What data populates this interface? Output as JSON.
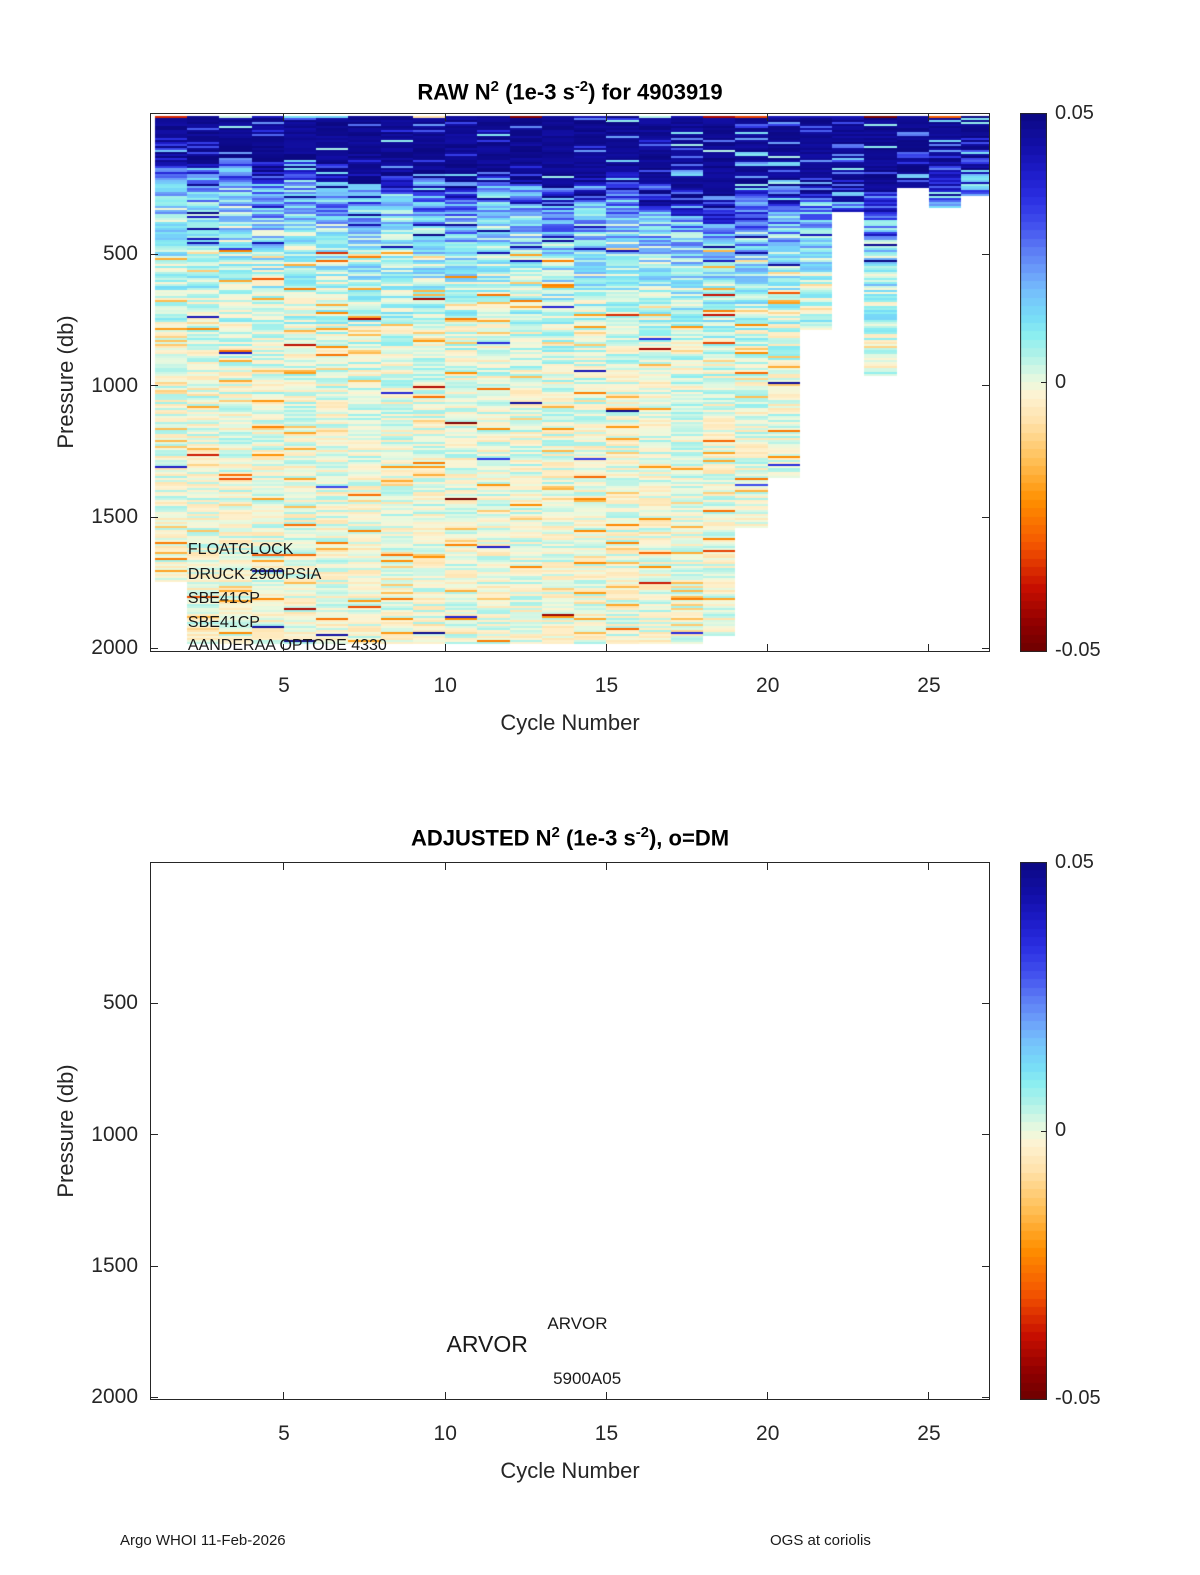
{
  "page": {
    "footer_left": "Argo WHOI 11-Feb-2026",
    "footer_right": "OGS at coriolis"
  },
  "colormap": {
    "vmin": -0.05,
    "vmax": 0.05,
    "levels": 64,
    "stops": [
      [
        0.0,
        "#6e0000"
      ],
      [
        0.05,
        "#8f0000"
      ],
      [
        0.12,
        "#c80f00"
      ],
      [
        0.2,
        "#f55700"
      ],
      [
        0.28,
        "#ff9000"
      ],
      [
        0.36,
        "#ffc35e"
      ],
      [
        0.43,
        "#ffe3ae"
      ],
      [
        0.475,
        "#fdf3d2"
      ],
      [
        0.5,
        "#ecf9dd"
      ],
      [
        0.52,
        "#d4f7e4"
      ],
      [
        0.55,
        "#b0f2e8"
      ],
      [
        0.585,
        "#8deef0"
      ],
      [
        0.62,
        "#77ddf7"
      ],
      [
        0.66,
        "#76c4fb"
      ],
      [
        0.7,
        "#6da3fa"
      ],
      [
        0.745,
        "#5c7bf5"
      ],
      [
        0.79,
        "#4251ee"
      ],
      [
        0.84,
        "#2b2fe2"
      ],
      [
        0.89,
        "#1d1bc8"
      ],
      [
        0.94,
        "#120fa6"
      ],
      [
        1.0,
        "#0b0882"
      ]
    ]
  },
  "chart_data": [
    {
      "type": "heatmap",
      "panel": "raw",
      "title_parts": [
        {
          "text": "RAW N"
        },
        {
          "sup": "2"
        },
        {
          "text": " (1e-3 s"
        },
        {
          "sup": "-2"
        },
        {
          "text": ") for 4903919"
        }
      ],
      "xlabel": "Cycle Number",
      "ylabel": "Pressure (db)",
      "xticks": [
        5,
        10,
        15,
        20,
        25
      ],
      "yticks": [
        500,
        1000,
        1500,
        2000
      ],
      "xlim": [
        0.845,
        26.9
      ],
      "ylim_db": [
        -40,
        2020
      ],
      "cycles": 26,
      "value_units": "1e-3 s^-2",
      "colorbar_ticks": [
        "0.05",
        "0",
        "-0.05"
      ],
      "column_bottom_db": [
        1780,
        2015,
        2015,
        2015,
        2015,
        2015,
        2015,
        2015,
        2015,
        2015,
        2015,
        2015,
        2015,
        2015,
        2015,
        2015,
        2015,
        1990,
        1575,
        1385,
        820,
        370,
        1000,
        285,
        360,
        310
      ],
      "surface_band_db": [
        110,
        150,
        125,
        185,
        145,
        175,
        225,
        195,
        215,
        255,
        205,
        235,
        275,
        245,
        220,
        270,
        290,
        305,
        290,
        270,
        240,
        255,
        290,
        215,
        180,
        160
      ],
      "seed": 20260211,
      "annotations": [
        {
          "text": "FLOATCLOCK",
          "cycle": 2.02,
          "pressure": 1630,
          "size": 16,
          "align": "left"
        },
        {
          "text": "DRUCK 2900PSIA",
          "cycle": 2.02,
          "pressure": 1725,
          "size": 16,
          "align": "left"
        },
        {
          "text": "SBE41CP",
          "cycle": 2.02,
          "pressure": 1817,
          "size": 16,
          "align": "left"
        },
        {
          "text": "SBE41CP",
          "cycle": 2.02,
          "pressure": 1908,
          "size": 16,
          "align": "left"
        },
        {
          "text": "AANDERAA OPTODE 4330",
          "cycle": 2.02,
          "pressure": 1996,
          "size": 16,
          "align": "left"
        }
      ]
    },
    {
      "type": "heatmap",
      "panel": "adjusted",
      "empty": true,
      "title_parts": [
        {
          "text": "ADJUSTED N"
        },
        {
          "sup": "2"
        },
        {
          "text": " (1e-3 s"
        },
        {
          "sup": "-2"
        },
        {
          "text": "), o=DM"
        }
      ],
      "xlabel": "Cycle Number",
      "ylabel": "Pressure (db)",
      "xticks": [
        5,
        10,
        15,
        20,
        25
      ],
      "yticks": [
        500,
        1000,
        1500,
        2000
      ],
      "xlim": [
        0.845,
        26.9
      ],
      "ylim_db": [
        -40,
        2020
      ],
      "value_units": "1e-3 s^-2",
      "colorbar_ticks": [
        "0.05",
        "0",
        "-0.05"
      ],
      "annotations": [
        {
          "text": "ARVOR",
          "cycle": 14.1,
          "pressure": 1721,
          "size": 17,
          "align": "center"
        },
        {
          "text": "ARVOR",
          "cycle": 11.3,
          "pressure": 1802,
          "size": 23,
          "align": "center"
        },
        {
          "text": "5900A05",
          "cycle": 14.4,
          "pressure": 1931,
          "size": 17,
          "align": "center"
        }
      ]
    }
  ],
  "layout_note": "two stacked pcolor panels sharing colormap; colorbars right of each panel"
}
